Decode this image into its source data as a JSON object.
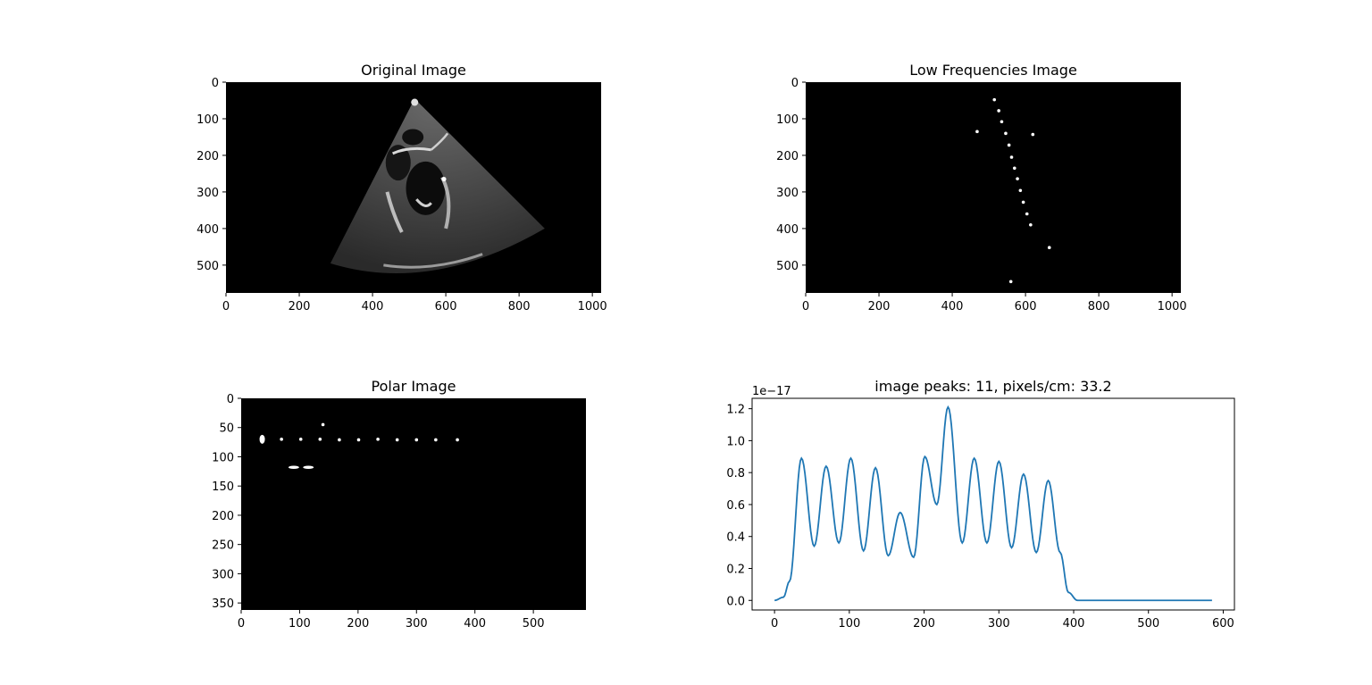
{
  "figure": {
    "background": "#ffffff"
  },
  "chart_data": [
    {
      "type": "image",
      "title": "Original Image",
      "xlim": [
        0,
        1024
      ],
      "ylim": [
        576,
        0
      ],
      "xticks": [
        0,
        200,
        400,
        600,
        800,
        1000
      ],
      "yticks": [
        0,
        100,
        200,
        300,
        400,
        500
      ],
      "colormap": "gray",
      "content": "ultrasound-sector"
    },
    {
      "type": "image",
      "title": "Low Frequencies Image",
      "xlim": [
        0,
        1024
      ],
      "ylim": [
        576,
        0
      ],
      "xticks": [
        0,
        200,
        400,
        600,
        800,
        1000
      ],
      "yticks": [
        0,
        100,
        200,
        300,
        400,
        500
      ],
      "colormap": "gray",
      "points": [
        {
          "x": 515,
          "y": 48
        },
        {
          "x": 527,
          "y": 78
        },
        {
          "x": 535,
          "y": 108
        },
        {
          "x": 546,
          "y": 140
        },
        {
          "x": 555,
          "y": 172
        },
        {
          "x": 562,
          "y": 205
        },
        {
          "x": 570,
          "y": 235
        },
        {
          "x": 578,
          "y": 264
        },
        {
          "x": 586,
          "y": 296
        },
        {
          "x": 594,
          "y": 328
        },
        {
          "x": 604,
          "y": 360
        },
        {
          "x": 614,
          "y": 390
        },
        {
          "x": 665,
          "y": 452
        },
        {
          "x": 468,
          "y": 135
        },
        {
          "x": 560,
          "y": 545
        },
        {
          "x": 620,
          "y": 143
        }
      ]
    },
    {
      "type": "image",
      "title": "Polar Image",
      "xlim": [
        0,
        590
      ],
      "ylim": [
        362,
        0
      ],
      "xticks": [
        0,
        100,
        200,
        300,
        400,
        500
      ],
      "yticks": [
        0,
        50,
        100,
        150,
        200,
        250,
        300,
        350
      ],
      "colormap": "gray",
      "points": [
        {
          "x": 36,
          "y": 70
        },
        {
          "x": 69,
          "y": 70
        },
        {
          "x": 102,
          "y": 70
        },
        {
          "x": 135,
          "y": 70
        },
        {
          "x": 168,
          "y": 71
        },
        {
          "x": 201,
          "y": 71
        },
        {
          "x": 234,
          "y": 70
        },
        {
          "x": 267,
          "y": 71
        },
        {
          "x": 300,
          "y": 71
        },
        {
          "x": 333,
          "y": 71
        },
        {
          "x": 370,
          "y": 71
        },
        {
          "x": 140,
          "y": 45
        },
        {
          "x": 90,
          "y": 118
        },
        {
          "x": 115,
          "y": 118
        }
      ]
    },
    {
      "type": "line",
      "title": "image peaks: 11, pixels/cm: 33.2",
      "offset_label": "1e−17",
      "xlim": [
        -30,
        615
      ],
      "ylim": [
        -0.06,
        1.265
      ],
      "xticks": [
        0,
        100,
        200,
        300,
        400,
        500,
        600
      ],
      "yticks": [
        "0.0",
        "0.2",
        "0.4",
        "0.6",
        "0.8",
        "1.0",
        "1.2"
      ],
      "line_color": "#1f77b4",
      "x_max": 585,
      "baseline": 0.33,
      "peaks": [
        {
          "x": 36,
          "y": 0.89
        },
        {
          "x": 69,
          "y": 0.84
        },
        {
          "x": 102,
          "y": 0.89
        },
        {
          "x": 135,
          "y": 0.83
        },
        {
          "x": 168,
          "y": 0.55
        },
        {
          "x": 201,
          "y": 0.9
        },
        {
          "x": 232,
          "y": 1.21
        },
        {
          "x": 267,
          "y": 0.89
        },
        {
          "x": 300,
          "y": 0.87
        },
        {
          "x": 333,
          "y": 0.79
        },
        {
          "x": 366,
          "y": 0.75
        }
      ],
      "troughs": [
        {
          "x": 53,
          "y": 0.34
        },
        {
          "x": 86,
          "y": 0.36
        },
        {
          "x": 119,
          "y": 0.31
        },
        {
          "x": 152,
          "y": 0.28
        },
        {
          "x": 186,
          "y": 0.27
        },
        {
          "x": 217,
          "y": 0.6
        },
        {
          "x": 251,
          "y": 0.36
        },
        {
          "x": 284,
          "y": 0.36
        },
        {
          "x": 317,
          "y": 0.33
        },
        {
          "x": 350,
          "y": 0.3
        }
      ]
    }
  ]
}
